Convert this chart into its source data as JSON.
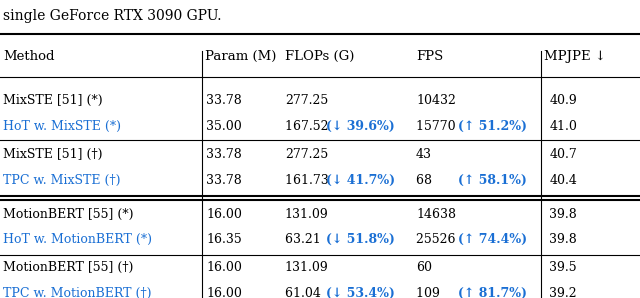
{
  "title_text": "single GeForce RTX 3090 GPU.",
  "header": [
    "Method",
    "Param (M)",
    "FLOPs (G)",
    "FPS",
    "MPJPE ↓"
  ],
  "rows": [
    {
      "group": 1,
      "method": "MixSTE [51] (*)",
      "method_color": "black",
      "param": "33.78",
      "flops": "277.25",
      "fps": "10432",
      "mpjpe": "40.9",
      "flops_note": "",
      "fps_note": ""
    },
    {
      "group": 1,
      "method": "HoT w. MixSTE (*)",
      "method_color": "#1a6fd4",
      "param": "35.00",
      "flops": "167.52",
      "fps": "15770",
      "mpjpe": "41.0",
      "flops_note": "(↓ 39.6%)",
      "fps_note": "(↑ 51.2%)"
    },
    {
      "group": 2,
      "method": "MixSTE [51] (†)",
      "method_color": "black",
      "param": "33.78",
      "flops": "277.25",
      "fps": "43",
      "mpjpe": "40.7",
      "flops_note": "",
      "fps_note": ""
    },
    {
      "group": 2,
      "method": "TPC w. MixSTE (†)",
      "method_color": "#1a6fd4",
      "param": "33.78",
      "flops": "161.73",
      "fps": "68",
      "mpjpe": "40.4",
      "flops_note": "(↓ 41.7%)",
      "fps_note": "(↑ 58.1%)"
    },
    {
      "group": 3,
      "method": "MotionBERT [55] (*)",
      "method_color": "black",
      "param": "16.00",
      "flops": "131.09",
      "fps": "14638",
      "mpjpe": "39.8",
      "flops_note": "",
      "fps_note": ""
    },
    {
      "group": 3,
      "method": "HoT w. MotionBERT (*)",
      "method_color": "#1a6fd4",
      "param": "16.35",
      "flops": "63.21",
      "fps": "25526",
      "mpjpe": "39.8",
      "flops_note": "(↓ 51.8%)",
      "fps_note": "(↑ 74.4%)"
    },
    {
      "group": 4,
      "method": "MotionBERT [55] (†)",
      "method_color": "black",
      "param": "16.00",
      "flops": "131.09",
      "fps": "60",
      "mpjpe": "39.5",
      "flops_note": "",
      "fps_note": ""
    },
    {
      "group": 4,
      "method": "TPC w. MotionBERT (†)",
      "method_color": "#1a6fd4",
      "param": "16.00",
      "flops": "61.04",
      "fps": "109",
      "mpjpe": "39.2",
      "flops_note": "(↓ 53.4%)",
      "fps_note": "(↑ 81.7%)"
    }
  ],
  "blue_color": "#1a6fd4",
  "black_color": "#000000",
  "bold_blue": "#1a6fd4",
  "background_color": "#ffffff"
}
